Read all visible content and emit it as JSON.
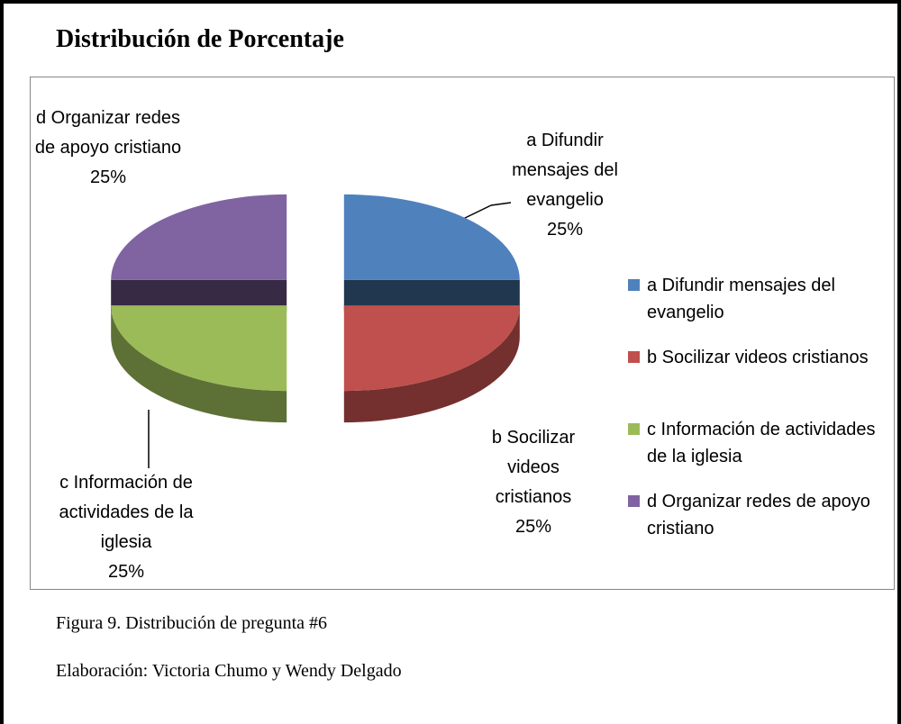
{
  "chart_data": {
    "type": "pie",
    "title": "Distribución de Porcentaje",
    "categories": [
      "a Difundir mensajes del evangelio",
      "b Socilizar videos cristianos",
      "c Información de actividades de la iglesia",
      "d Organizar redes de apoyo cristiano"
    ],
    "values": [
      25,
      25,
      25,
      25
    ],
    "value_labels": [
      "25%",
      "25%",
      "25%",
      "25%"
    ],
    "colors": [
      "#4f81bd",
      "#c0504d",
      "#9bbb59",
      "#8064a2"
    ],
    "legend": "right",
    "exploded": true,
    "three_d": true
  },
  "figure": {
    "caption": "Figura 9. Distribución de pregunta #6",
    "credit": "Elaboración: Victoria Chumo y Wendy Delgado"
  }
}
